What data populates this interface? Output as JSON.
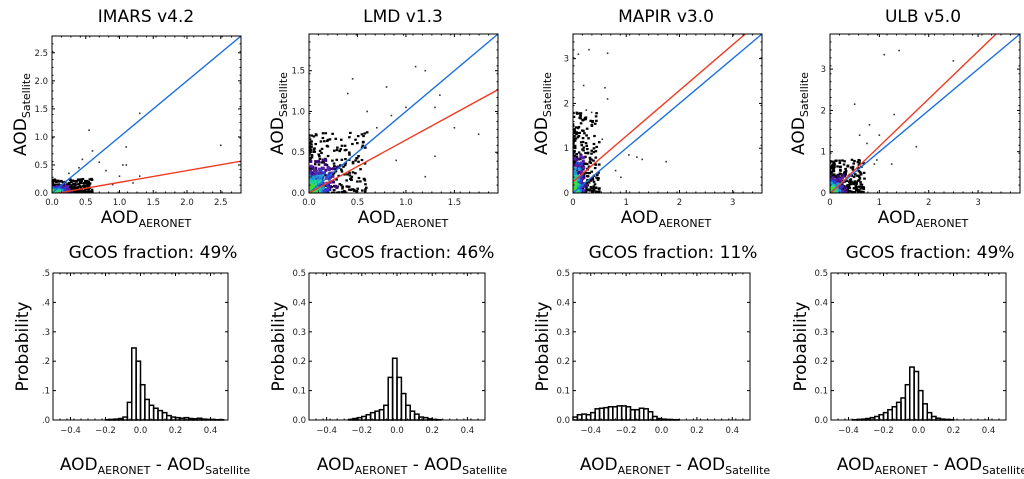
{
  "chart_data": [
    {
      "type": "scatter",
      "title": "IMARS v4.2",
      "xlabel": "AOD",
      "xlabel_sub": "AERONET",
      "ylabel": "AOD",
      "ylabel_sub": "Satellite",
      "xlim": [
        0,
        2.8
      ],
      "ylim": [
        0,
        2.8
      ],
      "xticks": [
        0.0,
        0.5,
        1.0,
        1.5,
        2.0,
        2.5
      ],
      "yticks": [
        0.0,
        0.5,
        1.0,
        1.5,
        2.0,
        2.5
      ],
      "tick_format": 1,
      "lines": [
        {
          "name": "1:1 line",
          "color": "#1a6fe0",
          "intercept": 0.0,
          "slope": 1.0
        },
        {
          "name": "regression fit",
          "color": "#f03a24",
          "intercept": -0.02,
          "slope": 0.21
        }
      ],
      "density_core": {
        "x_max": 0.6,
        "y_max": 0.25
      },
      "outliers": [
        [
          0.55,
          1.12
        ],
        [
          0.6,
          0.75
        ],
        [
          1.1,
          0.82
        ],
        [
          1.3,
          1.42
        ],
        [
          2.5,
          0.85
        ],
        [
          0.4,
          0.45
        ],
        [
          0.8,
          0.4
        ],
        [
          1.0,
          0.3
        ],
        [
          1.3,
          0.3
        ],
        [
          0.25,
          0.35
        ],
        [
          0.7,
          0.55
        ],
        [
          1.05,
          0.5
        ],
        [
          1.1,
          0.5
        ],
        [
          0.9,
          0.15
        ],
        [
          1.2,
          0.18
        ],
        [
          0.45,
          0.6
        ]
      ]
    },
    {
      "type": "scatter",
      "title": "LMD v1.3",
      "xlabel": "AOD",
      "xlabel_sub": "AERONET",
      "ylabel": "AOD",
      "ylabel_sub": "Satellite",
      "xlim": [
        0,
        1.95
      ],
      "ylim": [
        0,
        1.95
      ],
      "xticks": [
        0.0,
        0.5,
        1.0,
        1.5
      ],
      "yticks": [
        0.0,
        0.5,
        1.0,
        1.5
      ],
      "tick_format": 1,
      "lines": [
        {
          "name": "1:1 line",
          "color": "#1a6fe0",
          "intercept": 0.0,
          "slope": 1.0
        },
        {
          "name": "regression fit",
          "color": "#f03a24",
          "intercept": 0.0,
          "slope": 0.65
        }
      ],
      "density_core": {
        "x_max": 0.6,
        "y_max": 0.75
      },
      "outliers": [
        [
          1.1,
          1.55
        ],
        [
          1.2,
          1.5
        ],
        [
          0.45,
          1.4
        ],
        [
          0.8,
          1.3
        ],
        [
          0.4,
          1.22
        ],
        [
          1.35,
          1.2
        ],
        [
          1.0,
          1.05
        ],
        [
          1.3,
          1.05
        ],
        [
          0.6,
          1.0
        ],
        [
          0.85,
          0.95
        ],
        [
          1.75,
          0.72
        ],
        [
          1.3,
          0.45
        ],
        [
          1.2,
          0.2
        ],
        [
          0.9,
          0.4
        ],
        [
          1.5,
          0.8
        ],
        [
          0.7,
          0.8
        ]
      ]
    },
    {
      "type": "scatter",
      "title": "MAPIR v3.0",
      "xlabel": "AOD",
      "xlabel_sub": "AERONET",
      "ylabel": "AOD",
      "ylabel_sub": "Satellite",
      "xlim": [
        0,
        3.55
      ],
      "ylim": [
        0,
        3.55
      ],
      "xticks": [
        0,
        1,
        2,
        3
      ],
      "yticks": [
        0,
        1,
        2,
        3
      ],
      "tick_format": 0,
      "lines": [
        {
          "name": "1:1 line",
          "color": "#1a6fe0",
          "intercept": 0.0,
          "slope": 1.0
        },
        {
          "name": "regression fit",
          "color": "#f03a24",
          "intercept": 0.25,
          "slope": 1.02
        }
      ],
      "density_core": {
        "x_max": 0.5,
        "y_max": 1.8
      },
      "outliers": [
        [
          0.3,
          3.2
        ],
        [
          0.65,
          3.12
        ],
        [
          0.1,
          3.1
        ],
        [
          0.2,
          2.4
        ],
        [
          0.6,
          2.35
        ],
        [
          0.65,
          2.1
        ],
        [
          0.25,
          1.85
        ],
        [
          0.35,
          1.8
        ],
        [
          1.05,
          0.85
        ],
        [
          1.2,
          0.8
        ],
        [
          1.75,
          0.7
        ],
        [
          1.3,
          0.75
        ],
        [
          0.8,
          0.5
        ],
        [
          0.9,
          0.35
        ],
        [
          0.55,
          1.2
        ]
      ]
    },
    {
      "type": "scatter",
      "title": "ULB v5.0",
      "xlabel": "AOD",
      "xlabel_sub": "AERONET",
      "ylabel": "AOD",
      "ylabel_sub": "Satellite",
      "xlim": [
        0,
        3.85
      ],
      "ylim": [
        0,
        3.85
      ],
      "xticks": [
        0,
        1,
        2,
        3
      ],
      "yticks": [
        0,
        1,
        2,
        3
      ],
      "tick_format": 0,
      "lines": [
        {
          "name": "1:1 line",
          "color": "#1a6fe0",
          "intercept": 0.0,
          "slope": 1.0
        },
        {
          "name": "regression fit",
          "color": "#f03a24",
          "intercept": -0.02,
          "slope": 1.15
        }
      ],
      "density_core": {
        "x_max": 0.7,
        "y_max": 0.8
      },
      "outliers": [
        [
          1.1,
          3.35
        ],
        [
          1.4,
          3.45
        ],
        [
          2.5,
          3.2
        ],
        [
          0.5,
          2.15
        ],
        [
          1.3,
          1.9
        ],
        [
          0.8,
          1.65
        ],
        [
          1.75,
          1.12
        ],
        [
          1.0,
          1.0
        ],
        [
          0.9,
          0.7
        ],
        [
          1.25,
          0.7
        ],
        [
          0.75,
          1.2
        ],
        [
          0.6,
          1.4
        ],
        [
          1.0,
          1.4
        ],
        [
          0.95,
          0.8
        ]
      ]
    },
    {
      "type": "bar",
      "title": "GCOS fraction: 49%",
      "xlabel": "AOD",
      "xlabel_sub1": "AERONET",
      "xlabel_mid": " - AOD",
      "xlabel_sub2": "Satellite",
      "ylabel": "Probability",
      "xlim": [
        -0.5,
        0.5
      ],
      "ylim": [
        0,
        0.5
      ],
      "xticks": [
        -0.4,
        -0.2,
        0.0,
        0.2,
        0.4
      ],
      "yticks": [
        0.0,
        0.1,
        0.2,
        0.3,
        0.4,
        0.5
      ],
      "ytick_labels": [
        ".0",
        ".1",
        ".2",
        ".3",
        ".4",
        ".5"
      ],
      "bin_width": 0.025,
      "bin_start": -0.5,
      "values": [
        0,
        0,
        0,
        0,
        0,
        0,
        0,
        0,
        0,
        0,
        0,
        0,
        0.001,
        0.002,
        0.003,
        0.005,
        0.01,
        0.06,
        0.245,
        0.2,
        0.12,
        0.07,
        0.05,
        0.04,
        0.032,
        0.025,
        0.015,
        0.01,
        0.008,
        0.006,
        0.008,
        0.005,
        0.004,
        0.006,
        0.003,
        0.002,
        0.002,
        0.001,
        0.001,
        0
      ]
    },
    {
      "type": "bar",
      "title": "GCOS fraction: 46%",
      "xlabel": "AOD",
      "xlabel_sub1": "AERONET",
      "xlabel_mid": " - AOD",
      "xlabel_sub2": "Satellite",
      "ylabel": "Probability",
      "xlim": [
        -0.5,
        0.5
      ],
      "ylim": [
        0,
        0.5
      ],
      "xticks": [
        -0.4,
        -0.2,
        0.0,
        0.2,
        0.4
      ],
      "yticks": [
        0.0,
        0.1,
        0.2,
        0.3,
        0.4,
        0.5
      ],
      "ytick_labels": [
        "0.0",
        "0.1",
        "0.2",
        "0.3",
        "0.4",
        "0.5"
      ],
      "bin_width": 0.025,
      "bin_start": -0.5,
      "values": [
        0,
        0,
        0,
        0,
        0,
        0,
        0,
        0,
        0,
        0.002,
        0.005,
        0.008,
        0.012,
        0.018,
        0.025,
        0.03,
        0.035,
        0.05,
        0.145,
        0.21,
        0.145,
        0.09,
        0.05,
        0.03,
        0.02,
        0.01,
        0.008,
        0.004,
        0.002,
        0.001,
        0,
        0,
        0,
        0,
        0,
        0,
        0,
        0,
        0,
        0
      ]
    },
    {
      "type": "bar",
      "title": "GCOS fraction: 11%",
      "xlabel": "AOD",
      "xlabel_sub1": "AERONET",
      "xlabel_mid": " - AOD",
      "xlabel_sub2": "Satellite",
      "ylabel": "Probability",
      "xlim": [
        -0.5,
        0.5
      ],
      "ylim": [
        0,
        0.5
      ],
      "xticks": [
        -0.4,
        -0.2,
        0.0,
        0.2,
        0.4
      ],
      "yticks": [
        0.0,
        0.1,
        0.2,
        0.3,
        0.4,
        0.5
      ],
      "ytick_labels": [
        "0.0",
        "0.1",
        "0.2",
        "0.3",
        "0.4",
        "0.5"
      ],
      "bin_width": 0.025,
      "bin_start": -0.5,
      "values": [
        0.01,
        0.018,
        0.02,
        0.018,
        0.025,
        0.038,
        0.04,
        0.042,
        0.045,
        0.045,
        0.048,
        0.048,
        0.045,
        0.035,
        0.035,
        0.04,
        0.038,
        0.028,
        0.012,
        0.005,
        0.003,
        0.002,
        0.001,
        0.001,
        0,
        0,
        0,
        0,
        0,
        0,
        0,
        0,
        0,
        0,
        0,
        0,
        0,
        0,
        0,
        0
      ]
    },
    {
      "type": "bar",
      "title": "GCOS fraction: 49%",
      "xlabel": "AOD",
      "xlabel_sub1": "AERONET",
      "xlabel_mid": " - AOD",
      "xlabel_sub2": "Satellite",
      "ylabel": "Probability",
      "xlim": [
        -0.5,
        0.5
      ],
      "ylim": [
        0,
        0.5
      ],
      "xticks": [
        -0.4,
        -0.2,
        0.0,
        0.2,
        0.4
      ],
      "yticks": [
        0.0,
        0.1,
        0.2,
        0.3,
        0.4,
        0.5
      ],
      "ytick_labels": [
        "0.0",
        "0.1",
        "0.2",
        "0.3",
        "0.4",
        "0.5"
      ],
      "bin_width": 0.025,
      "bin_start": -0.5,
      "values": [
        0,
        0,
        0,
        0,
        0,
        0.001,
        0.002,
        0.003,
        0.005,
        0.008,
        0.012,
        0.018,
        0.025,
        0.035,
        0.045,
        0.06,
        0.075,
        0.12,
        0.18,
        0.165,
        0.1,
        0.055,
        0.025,
        0.012,
        0.006,
        0.003,
        0.002,
        0.001,
        0,
        0,
        0,
        0,
        0,
        0,
        0,
        0,
        0,
        0,
        0,
        0
      ]
    }
  ]
}
